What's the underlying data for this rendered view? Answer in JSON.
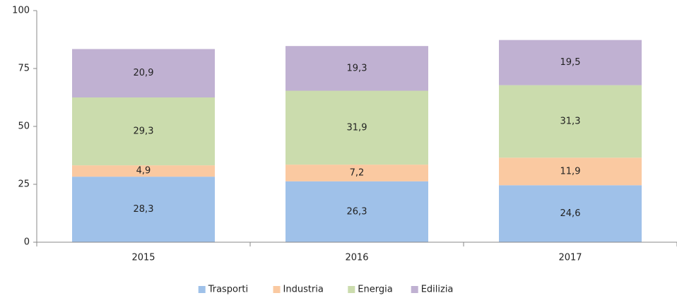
{
  "chart_data": {
    "type": "stacked_bar",
    "categories": [
      "2015",
      "2016",
      "2017"
    ],
    "series": [
      {
        "name": "Trasporti",
        "color": "#9fc1e9",
        "values": [
          28.3,
          26.3,
          24.6
        ],
        "value_labels": [
          "28,3",
          "26,3",
          "24,6"
        ]
      },
      {
        "name": "Industria",
        "color": "#fac9a1",
        "values": [
          4.9,
          7.2,
          11.9
        ],
        "value_labels": [
          "4,9",
          "7,2",
          "11,9"
        ]
      },
      {
        "name": "Energia",
        "color": "#cbdcad",
        "values": [
          29.3,
          31.9,
          31.3
        ],
        "value_labels": [
          "29,3",
          "31,9",
          "31,3"
        ]
      },
      {
        "name": "Edilizia",
        "color": "#c0b1d2",
        "values": [
          20.9,
          19.3,
          19.5
        ],
        "value_labels": [
          "20,9",
          "19,3",
          "19,5"
        ]
      }
    ],
    "ylim": [
      0,
      100
    ],
    "yticks": [
      0,
      25,
      50,
      75,
      100
    ],
    "legend": "bottom"
  }
}
